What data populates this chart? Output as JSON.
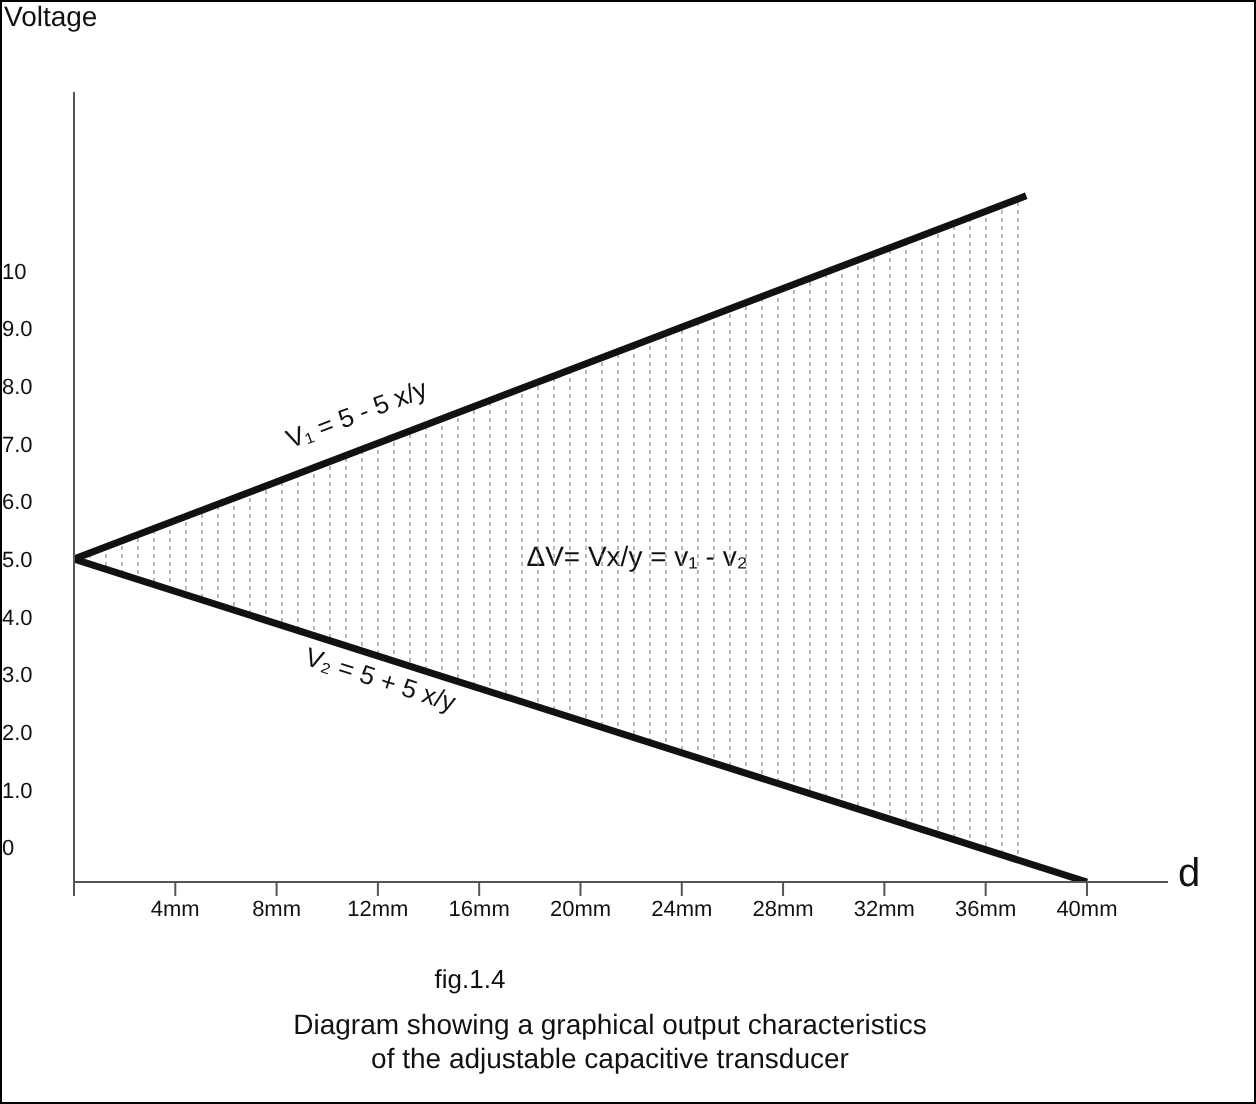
{
  "chart_data": {
    "type": "line",
    "ylabel": "Voltage",
    "xlabel": "d",
    "xlim": [
      0,
      43.2
    ],
    "xticks": [
      {
        "value": 0,
        "label": null
      },
      {
        "value": 4,
        "label": "4mm"
      },
      {
        "value": 8,
        "label": "8mm"
      },
      {
        "value": 12,
        "label": "12mm"
      },
      {
        "value": 16,
        "label": "16mm"
      },
      {
        "value": 20,
        "label": "20mm"
      },
      {
        "value": 24,
        "label": "24mm"
      },
      {
        "value": 28,
        "label": "28mm"
      },
      {
        "value": 32,
        "label": "32mm"
      },
      {
        "value": 36,
        "label": "36mm"
      },
      {
        "value": 40,
        "label": "40mm"
      }
    ],
    "ylim": [
      -0.6,
      13.1
    ],
    "yticks": [
      0,
      {
        "value": 1,
        "label": "1.0"
      },
      {
        "value": 2,
        "label": "2.0"
      },
      {
        "value": 3,
        "label": "3.0"
      },
      {
        "value": 4,
        "label": "4.0"
      },
      {
        "value": 5,
        "label": "5.0"
      },
      {
        "value": 6,
        "label": "6.0"
      },
      {
        "value": 7,
        "label": "7.0"
      },
      {
        "value": 8,
        "label": "8.0"
      },
      {
        "value": 9,
        "label": "9.0"
      },
      10
    ],
    "series": [
      {
        "name": "V₁ = 5 - 5 x/y",
        "color": "#111111",
        "x": [
          0,
          37.6
        ],
        "values": [
          5,
          11.3
        ],
        "lower": [
          5,
          -0.26
        ],
        "upper": [
          5,
          11.3
        ]
      },
      {
        "name": "V₂ = 5 + 5 x/y",
        "color": "#111111",
        "x": [
          0,
          40
        ],
        "values": [
          5,
          -0.6
        ]
      }
    ],
    "marker": "none",
    "line_style": "solid",
    "annotations": [
      "ΔV= Vx/y = v₁ - v₂",
      "fig.1.4",
      "Diagram showing a graphical output characteristics of the adjustable capacitive transducer"
    ]
  }
}
